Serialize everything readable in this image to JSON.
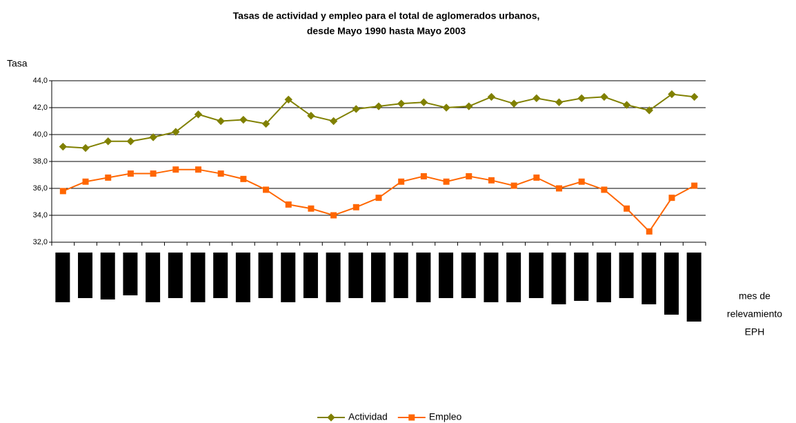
{
  "chart_data": {
    "type": "line",
    "title": [
      "Tasas de actividad y empleo para el total de aglomerados urbanos,",
      "desde Mayo 1990 hasta Mayo 2003"
    ],
    "y_label": "Tasa",
    "x_label": [
      "mes de",
      "relevamiento",
      "EPH"
    ],
    "categories": [
      null,
      null,
      null,
      null,
      null,
      null,
      null,
      null,
      null,
      null,
      null,
      null,
      null,
      null,
      null,
      null,
      null,
      null,
      null,
      null,
      null,
      null,
      null,
      null,
      null,
      null,
      null,
      null,
      null
    ],
    "series": [
      {
        "name": "Actividad",
        "color": "#808000",
        "marker": "diamond",
        "values": [
          39.1,
          39.0,
          39.5,
          39.5,
          39.8,
          40.2,
          41.5,
          41.0,
          41.1,
          40.8,
          42.6,
          41.4,
          41.0,
          41.9,
          42.1,
          42.3,
          42.4,
          42.0,
          42.1,
          42.8,
          42.3,
          42.7,
          42.4,
          42.7,
          42.8,
          42.2,
          41.8,
          43.0,
          42.8
        ]
      },
      {
        "name": "Empleo",
        "color": "#ff6600",
        "marker": "square",
        "values": [
          35.8,
          36.5,
          36.8,
          37.1,
          37.1,
          37.4,
          37.4,
          37.1,
          36.7,
          35.9,
          34.8,
          34.5,
          34.0,
          34.6,
          35.3,
          36.5,
          36.9,
          36.5,
          36.9,
          36.6,
          36.2,
          36.8,
          36.0,
          36.5,
          35.9,
          34.5,
          32.8,
          35.3,
          36.2
        ]
      }
    ],
    "ylim": [
      32,
      44
    ],
    "yticks": [
      {
        "value": 32,
        "label": "32,0"
      },
      {
        "value": 34,
        "label": "34,0"
      },
      {
        "value": 36,
        "label": "36,0"
      },
      {
        "value": 38,
        "label": "38,0"
      },
      {
        "value": 40,
        "label": "40,0"
      },
      {
        "value": 42,
        "label": "42,0"
      },
      {
        "value": 44,
        "label": "44,0"
      }
    ],
    "grid": true,
    "legend": "bottom"
  }
}
